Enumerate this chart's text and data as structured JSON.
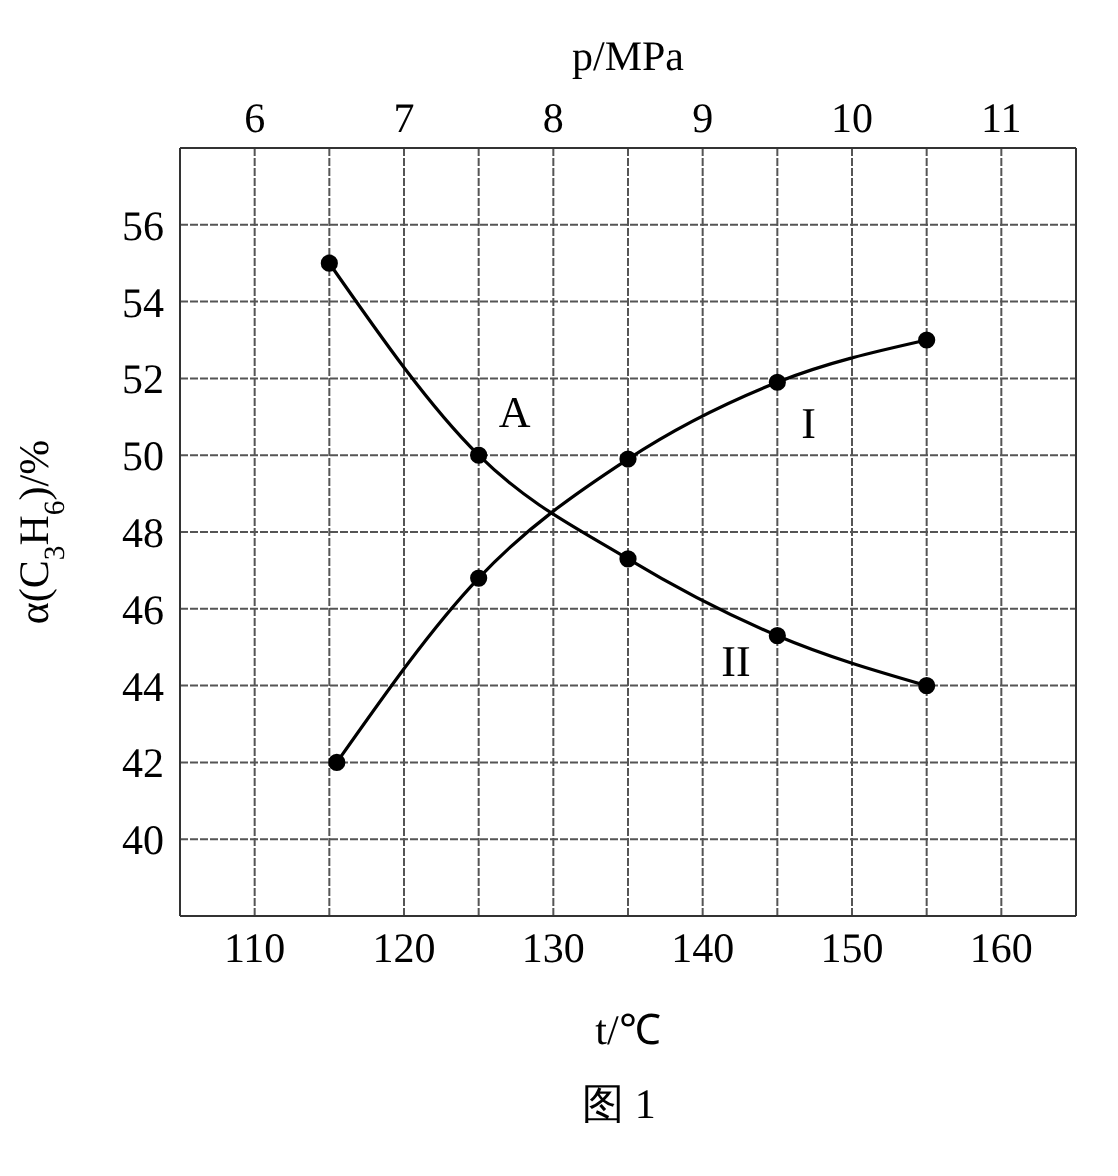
{
  "chart_data": {
    "type": "line",
    "xlabel": "t/℃",
    "x2label": "p/MPa",
    "ylabel": "α(C$_{3}$H$_{6}$)/%",
    "xlim": [
      105,
      165
    ],
    "xticks": [
      110,
      {
        "value": 115,
        "label": null
      },
      120,
      {
        "value": 125,
        "label": null
      },
      130,
      {
        "value": 135,
        "label": null
      },
      140,
      {
        "value": 145,
        "label": null
      },
      150,
      {
        "value": 155,
        "label": null
      },
      160
    ],
    "x2lim": [
      5.5,
      11.5
    ],
    "x2ticks": [
      6,
      7,
      8,
      9,
      10,
      11
    ],
    "ylim": [
      38,
      58
    ],
    "yticks": [
      40,
      42,
      44,
      46,
      48,
      50,
      52,
      54,
      56
    ],
    "grid": true,
    "marker": "circle",
    "line_style": "solid",
    "legend": false,
    "series": [
      {
        "name": "I",
        "color": "#000000",
        "x": [
          115.5,
          125,
          135,
          145,
          155
        ],
        "values": [
          42,
          46.8,
          49.9,
          51.9,
          53
        ]
      },
      {
        "name": "II",
        "color": "#000000",
        "x": [
          115,
          125,
          135,
          145,
          155
        ],
        "values": [
          55,
          50,
          47.3,
          45.3,
          44
        ]
      }
    ],
    "annotations": [
      {
        "text": "A",
        "x": 125,
        "y": 50
      },
      "图 1"
    ]
  }
}
